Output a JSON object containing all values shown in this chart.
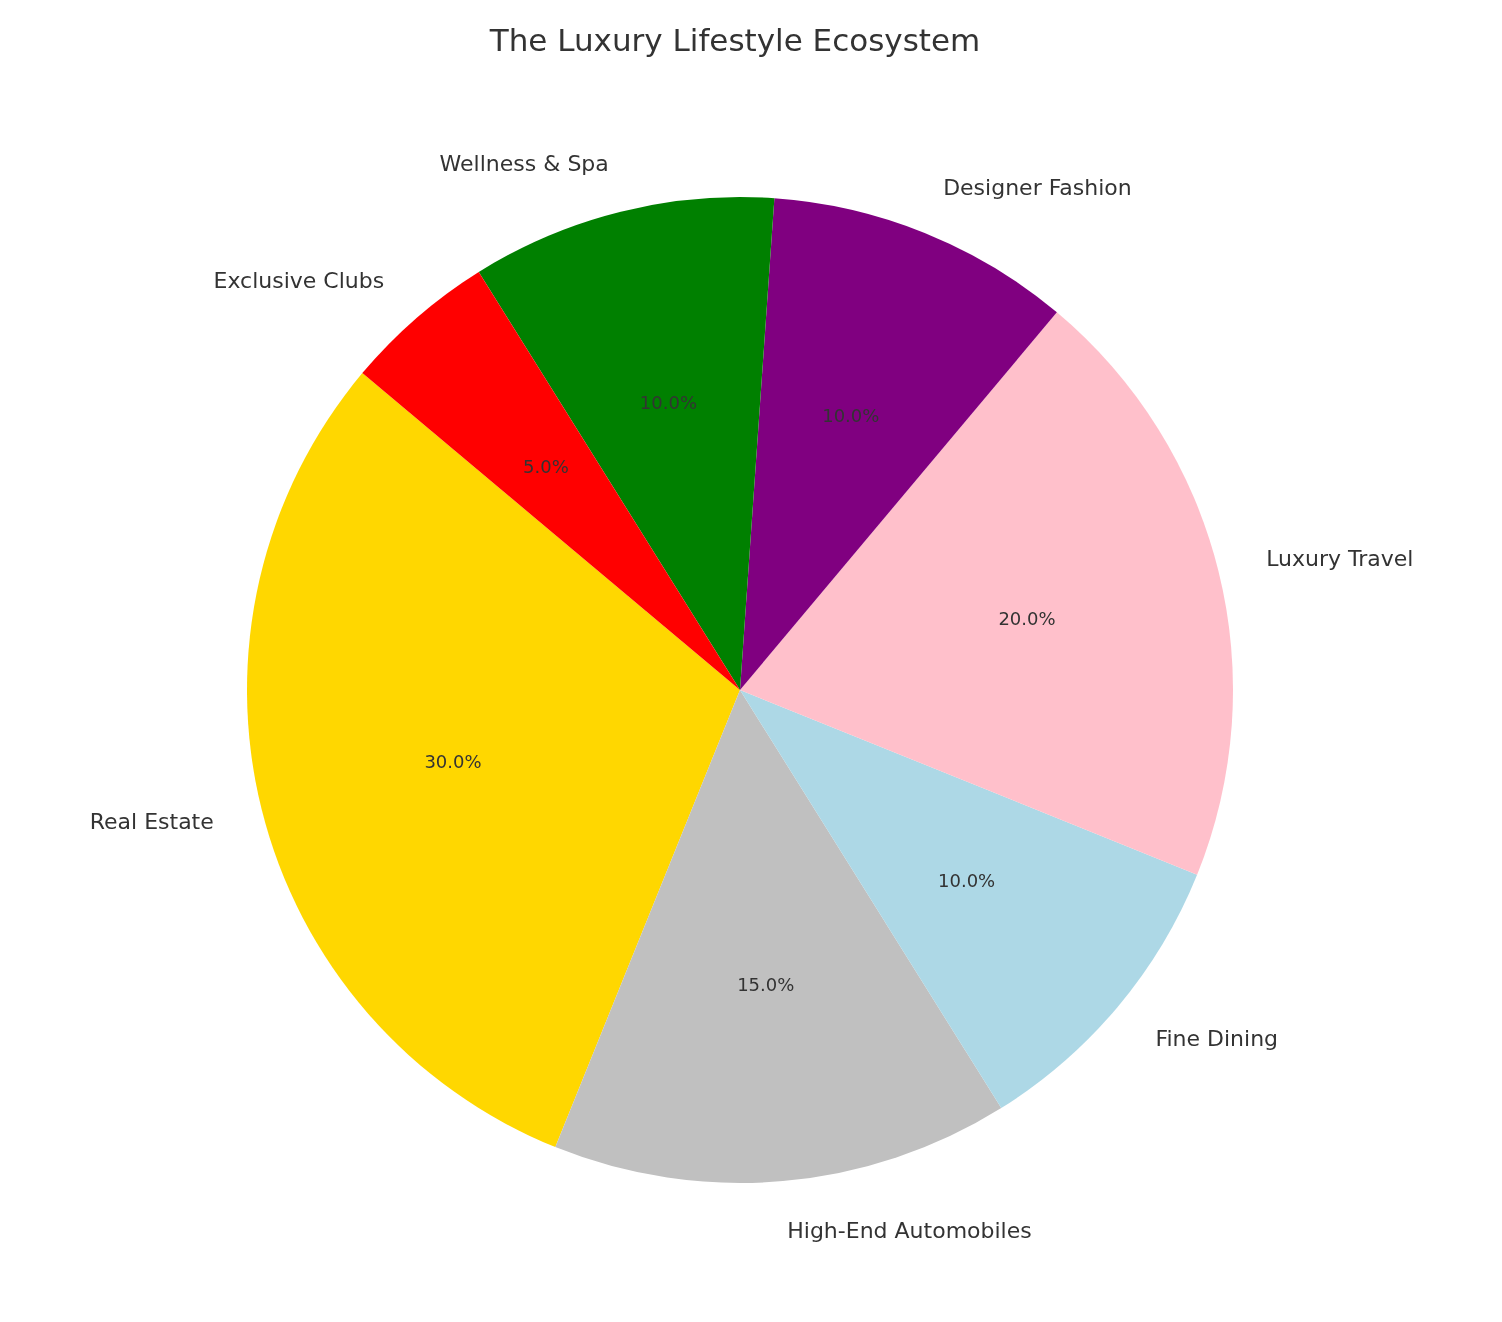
{
  "chart_data": {
    "type": "pie",
    "title": "The Luxury Lifestyle Ecosystem",
    "categories": [
      "Real Estate",
      "High-End Automobiles",
      "Fine Dining",
      "Luxury Travel",
      "Designer Fashion",
      "Wellness & Spa",
      "Exclusive Clubs"
    ],
    "values": [
      30,
      15,
      10,
      20,
      10,
      10,
      5
    ],
    "colors": [
      "#ffd700",
      "#c0c0c0",
      "#add8e6",
      "#ffc0cb",
      "#800080",
      "#008000",
      "#ff0000"
    ],
    "value_labels": [
      "30.0%",
      "15.0%",
      "10.0%",
      "20.0%",
      "10.0%",
      "10.0%",
      "5.0%"
    ]
  }
}
